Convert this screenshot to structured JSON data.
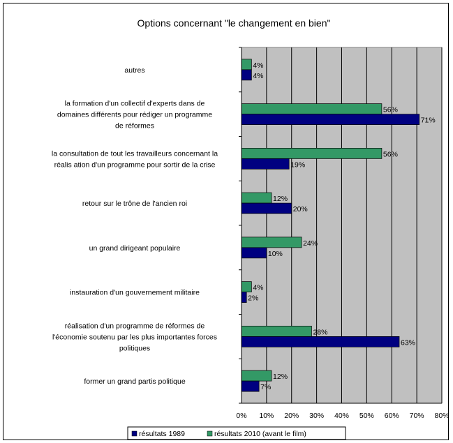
{
  "chart_data": {
    "type": "bar",
    "orientation": "horizontal",
    "title": "Options concernant \"le changement en bien\"",
    "xlabel": "",
    "ylabel": "",
    "xlim": [
      0,
      80
    ],
    "x_ticks": [
      "0%",
      "10%",
      "20%",
      "30%",
      "40%",
      "50%",
      "60%",
      "70%",
      "80%"
    ],
    "grid": true,
    "legend_position": "bottom",
    "categories": [
      [
        "autres"
      ],
      [
        "la formation d'un collectif d'experts dans de",
        "domaines différents pour rédiger un programme",
        "de réformes"
      ],
      [
        "la consultation de tout les travailleurs concernant la",
        "réalis ation d'un programme pour sortir de la crise"
      ],
      [
        "retour sur le trône de l'ancien roi"
      ],
      [
        "un grand dirigeant populaire"
      ],
      [
        "instauration d'un gouvernement militaire"
      ],
      [
        "réalisation d'un programme de réformes de",
        "l'économie soutenu par les plus importantes forces",
        "politiques"
      ],
      [
        "former un grand partis politique"
      ]
    ],
    "series": [
      {
        "name": "résultats 2010 (avant le film)",
        "color": "#339966",
        "values": [
          4,
          56,
          56,
          12,
          24,
          4,
          28,
          12
        ],
        "labels": [
          "4%",
          "56%",
          "56%",
          "12%",
          "24%",
          "4%",
          "28%",
          "12%"
        ]
      },
      {
        "name": "résultats 1989",
        "color": "#000080",
        "values": [
          4,
          71,
          19,
          20,
          10,
          2,
          63,
          7
        ],
        "labels": [
          "4%",
          "71%",
          "19%",
          "20%",
          "10%",
          "2%",
          "63%",
          "7%"
        ]
      }
    ],
    "legend": [
      {
        "name": "résultats 1989",
        "color": "#000080"
      },
      {
        "name": "résultats 2010 (avant le film)",
        "color": "#339966"
      }
    ],
    "plot_background": "#c0c0c0"
  }
}
